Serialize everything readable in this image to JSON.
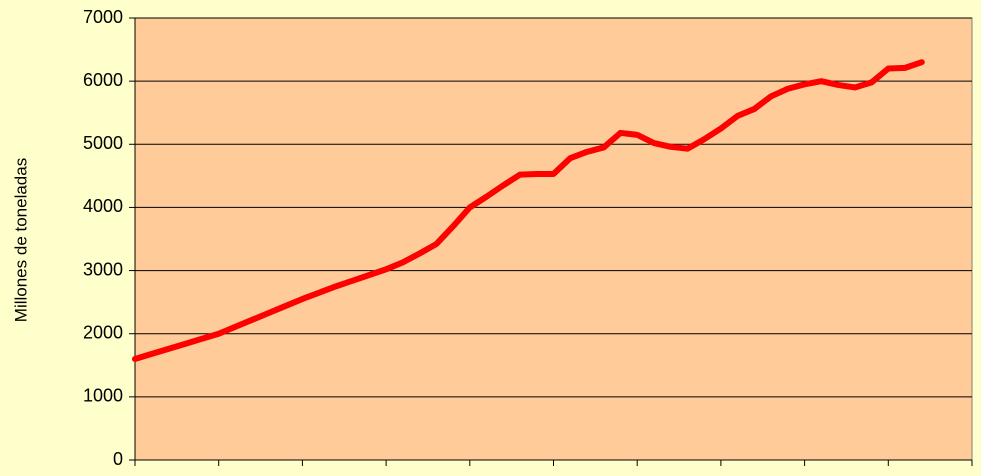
{
  "chart_data": {
    "type": "line",
    "y_label": "Millones de toneladas",
    "categories": [
      null,
      null,
      null,
      null,
      null,
      null,
      null,
      null,
      null,
      null,
      null,
      null,
      null,
      null,
      null,
      null,
      null,
      null,
      null,
      null,
      null,
      null,
      null,
      null,
      null,
      null,
      null,
      null,
      null,
      null,
      null,
      null,
      null,
      null,
      null,
      null,
      null,
      null,
      null,
      null,
      null,
      null,
      null,
      null,
      null,
      null,
      null,
      null,
      null,
      null,
      null
    ],
    "series": [
      {
        "name": null,
        "color": "#ff0000",
        "values": [
          1600,
          1680,
          1760,
          1840,
          1920,
          2000,
          2110,
          2220,
          2330,
          2440,
          2550,
          2650,
          2750,
          2840,
          2930,
          3020,
          3130,
          3270,
          3420,
          3700,
          4000,
          4170,
          4350,
          4520,
          4530,
          4530,
          4780,
          4880,
          4950,
          5180,
          5150,
          5020,
          4960,
          4930,
          5080,
          5250,
          5450,
          5560,
          5760,
          5880,
          5950,
          6000,
          5940,
          5900,
          5980,
          6200,
          6210,
          6300,
          null,
          null,
          null
        ]
      }
    ],
    "ylim": [
      0,
      7000
    ],
    "yticks": [
      0,
      1000,
      2000,
      3000,
      4000,
      5000,
      6000,
      7000
    ],
    "grid": true,
    "background": "#ffffcc",
    "plot_background": "#ffcc99"
  }
}
